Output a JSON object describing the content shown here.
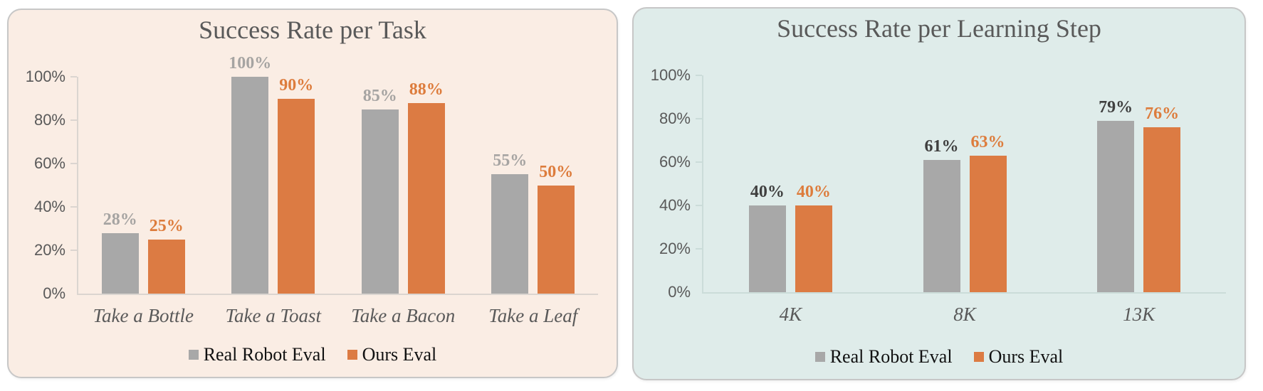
{
  "colors": {
    "series_gray": "#a8a8a8",
    "series_orange": "#dc7b43",
    "data_label_gray_muted": "#a6a4a2",
    "data_label_dark": "#3f3f3f",
    "data_label_orange": "#dd7c3c",
    "title_text": "#595959",
    "panel_task_bg": "#faede4",
    "panel_step_bg": "#dfecea"
  },
  "chart_data": [
    {
      "type": "bar",
      "title": "Success Rate per Task",
      "categories": [
        "Take a Bottle",
        "Take a Toast",
        "Take a Bacon",
        "Take a Leaf"
      ],
      "series": [
        {
          "name": "Real Robot Eval",
          "values": [
            28,
            100,
            85,
            55
          ],
          "color": "#a8a8a8",
          "label_color": "#a6a4a2"
        },
        {
          "name": "Ours Eval",
          "values": [
            25,
            90,
            88,
            50
          ],
          "color": "#dc7b43",
          "label_color": "#dd7c3c"
        }
      ],
      "unit": "%",
      "ylim": [
        0,
        100
      ],
      "yticks": [
        "0%",
        "20%",
        "40%",
        "60%",
        "80%",
        "100%"
      ],
      "grid": false,
      "data_labels": true,
      "legend_position": "bottom"
    },
    {
      "type": "bar",
      "title": "Success Rate per Learning Step",
      "categories": [
        "4K",
        "8K",
        "13K"
      ],
      "series": [
        {
          "name": "Real Robot Eval",
          "values": [
            40,
            61,
            79
          ],
          "color": "#a8a8a8",
          "label_color": "#3f3f3f"
        },
        {
          "name": "Ours Eval",
          "values": [
            40,
            63,
            76
          ],
          "color": "#dc7b43",
          "label_color": "#dd7c3c"
        }
      ],
      "unit": "%",
      "ylim": [
        0,
        100
      ],
      "yticks": [
        "0%",
        "20%",
        "40%",
        "60%",
        "80%",
        "100%"
      ],
      "grid": false,
      "data_labels": true,
      "legend_position": "bottom"
    }
  ]
}
